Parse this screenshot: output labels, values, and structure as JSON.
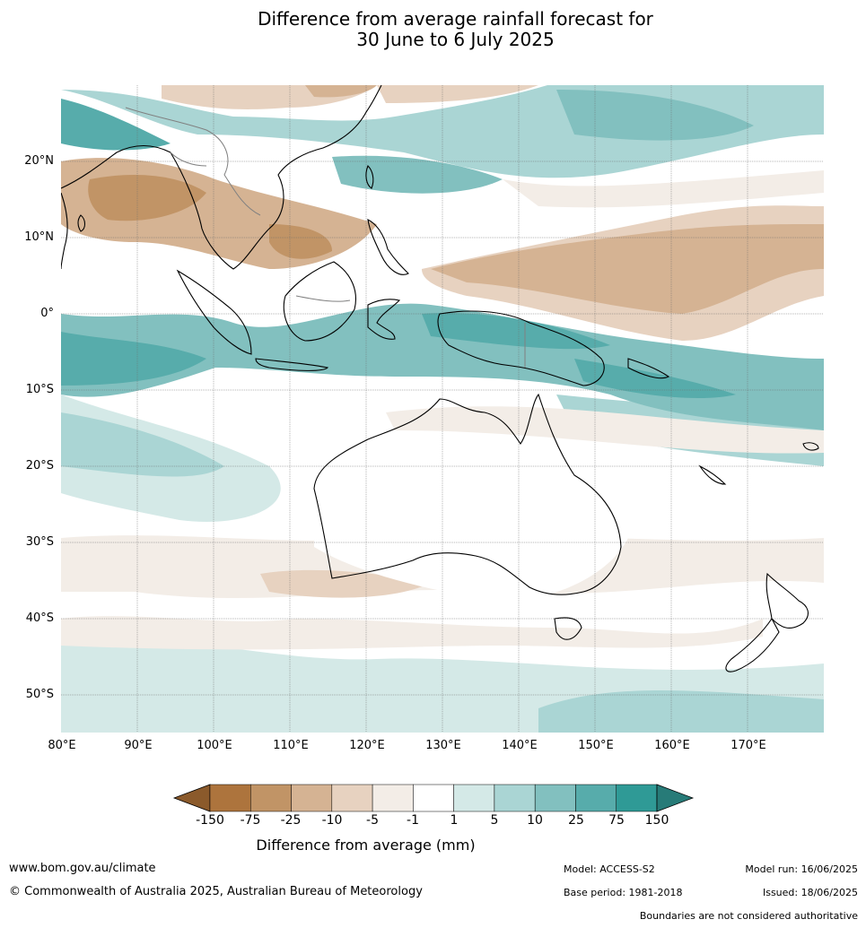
{
  "title": {
    "line1": "Difference from average rainfall forecast for",
    "line2": "30 June to 6 July 2025"
  },
  "map": {
    "latitude_labels": [
      "20°N",
      "10°N",
      "0°",
      "10°S",
      "20°S",
      "30°S",
      "40°S",
      "50°S"
    ],
    "longitude_labels": [
      "80°E",
      "90°E",
      "100°E",
      "110°E",
      "120°E",
      "130°E",
      "140°E",
      "150°E",
      "160°E",
      "170°E"
    ],
    "extent": {
      "lon_min": 80,
      "lon_max": 180,
      "lat_min": -55,
      "lat_max": 30
    },
    "land_outline_color": "#000000",
    "graticule": true
  },
  "legend": {
    "label": "Difference from average (mm)",
    "tick_labels": [
      "-150",
      "-75",
      "-25",
      "-10",
      "-5",
      "-1",
      "1",
      "5",
      "10",
      "25",
      "75",
      "150"
    ],
    "colors": [
      "#8b5a2b",
      "#ad743d",
      "#c19466",
      "#d5b393",
      "#e7d2c0",
      "#f3ede7",
      "#ffffff",
      "#d4e9e7",
      "#aad5d4",
      "#82c0bf",
      "#57acab",
      "#2f9a96",
      "#277b78"
    ]
  },
  "footer": {
    "website": "www.bom.gov.au/climate",
    "copyright": "© Commonwealth of Australia 2025, Australian Bureau of Meteorology",
    "model": "Model: ACCESS-S2",
    "base_period": "Base period: 1981-2018",
    "model_run": "Model run: 16/06/2025",
    "issued": "Issued: 18/06/2025",
    "boundaries_note": "Boundaries are not considered authoritative"
  }
}
